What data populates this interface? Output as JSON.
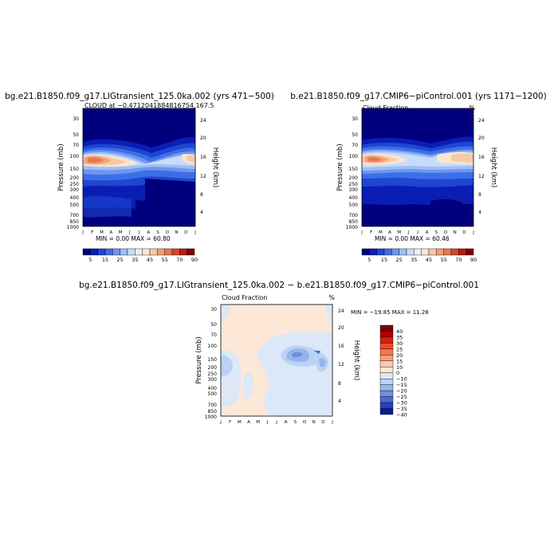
{
  "months": [
    "J",
    "F",
    "M",
    "A",
    "M",
    "J",
    "J",
    "A",
    "S",
    "O",
    "N",
    "D",
    "J"
  ],
  "pressure_ticks": [
    30,
    50,
    70,
    100,
    150,
    200,
    250,
    300,
    400,
    500,
    700,
    850,
    1000
  ],
  "height_ticks": [
    24,
    20,
    16,
    12,
    8,
    4
  ],
  "chart_data": [
    {
      "type": "heatmap",
      "title": "bg.e21.B1850.f09_g17.LIGtransient_125.0ka.002 (yrs 471−500)",
      "subtitle": "CLOUD at −0.4712041884816754,167.5",
      "unit_mark": "",
      "ylabel_left": "Pressure (mb)",
      "ylabel_right": "Height (km)",
      "stats": "MIN =     0.00  MAX =    60.80",
      "colorbar_labels": [
        "5",
        "15",
        "25",
        "35",
        "45",
        "55",
        "70",
        "90"
      ],
      "palette": "cloud",
      "levels": [
        5,
        10,
        15,
        20,
        25,
        30,
        35,
        40,
        45,
        50,
        55,
        60,
        70,
        80,
        90
      ],
      "data_range": [
        0.0,
        60.8
      ],
      "features": [
        {
          "name": "upper-cloud-layer",
          "peak_pressure": 100,
          "range": [
            15,
            60
          ]
        },
        {
          "name": "midlevel-minimum",
          "months": [
            "J",
            "A",
            "S",
            "O",
            "N",
            "D"
          ],
          "pressure": [
            300,
            850
          ],
          "range": [
            0,
            5
          ]
        }
      ]
    },
    {
      "type": "heatmap",
      "title": "b.e21.B1850.f09_g17.CMIP6−piControl.001 (yrs 1171−1200)",
      "subtitle": "Cloud Fraction",
      "unit_mark": "%",
      "ylabel_left": "Pressure (mb)",
      "ylabel_right": "Height (km)",
      "stats": "MIN =     0.00  MAX =    60.46",
      "colorbar_labels": [
        "5",
        "15",
        "25",
        "35",
        "45",
        "55",
        "70",
        "90"
      ],
      "palette": "cloud",
      "levels": [
        5,
        10,
        15,
        20,
        25,
        30,
        35,
        40,
        45,
        50,
        55,
        60,
        70,
        80,
        90
      ],
      "data_range": [
        0.0,
        60.46
      ],
      "features": [
        {
          "name": "upper-cloud-layer",
          "peak_pressure": 100,
          "range": [
            15,
            60
          ]
        }
      ]
    },
    {
      "type": "heatmap",
      "title": "bg.e21.B1850.f09_g17.LIGtransient_125.0ka.002 − b.e21.B1850.f09_g17.CMIP6−piControl.001",
      "subtitle": "Cloud Fraction",
      "unit_mark": "%",
      "ylabel_left": "Pressure (mb)",
      "ylabel_right": "Height (km)",
      "stats": "MIN = −19.85  MAX =   11.28",
      "colorbar_labels": [
        "40",
        "35",
        "30",
        "25",
        "20",
        "15",
        "10",
        "0",
        "−10",
        "−15",
        "−20",
        "−25",
        "−30",
        "−35",
        "−40"
      ],
      "palette": "diff",
      "levels": [
        -40,
        -35,
        -30,
        -25,
        -20,
        -15,
        -10,
        0,
        10,
        15,
        20,
        25,
        30,
        35,
        40
      ],
      "data_range": [
        -19.85,
        11.28
      ],
      "features": [
        {
          "name": "negative-core",
          "months": [
            "A",
            "S",
            "O",
            "N",
            "D"
          ],
          "pressure": [
            100,
            200
          ],
          "range": [
            -20,
            -10
          ]
        }
      ]
    }
  ],
  "colors": {
    "cloud": [
      "#00007f",
      "#0a1eb4",
      "#1e46d2",
      "#3c6ee6",
      "#6e96f0",
      "#a0bef5",
      "#c8dcfa",
      "#e6f0fa",
      "#fbe6d2",
      "#f7c8a5",
      "#f0a078",
      "#e6784b",
      "#d2462d",
      "#b41e14",
      "#7f0000"
    ],
    "diff": [
      "#7f0000",
      "#b00000",
      "#d82010",
      "#f04a2a",
      "#f7744e",
      "#fba07c",
      "#fcc8ae",
      "#fde7d6",
      "#dce8f8",
      "#bcd2f4",
      "#96b4ec",
      "#6e8ee0",
      "#4a68d0",
      "#2442b8",
      "#08208f"
    ]
  }
}
